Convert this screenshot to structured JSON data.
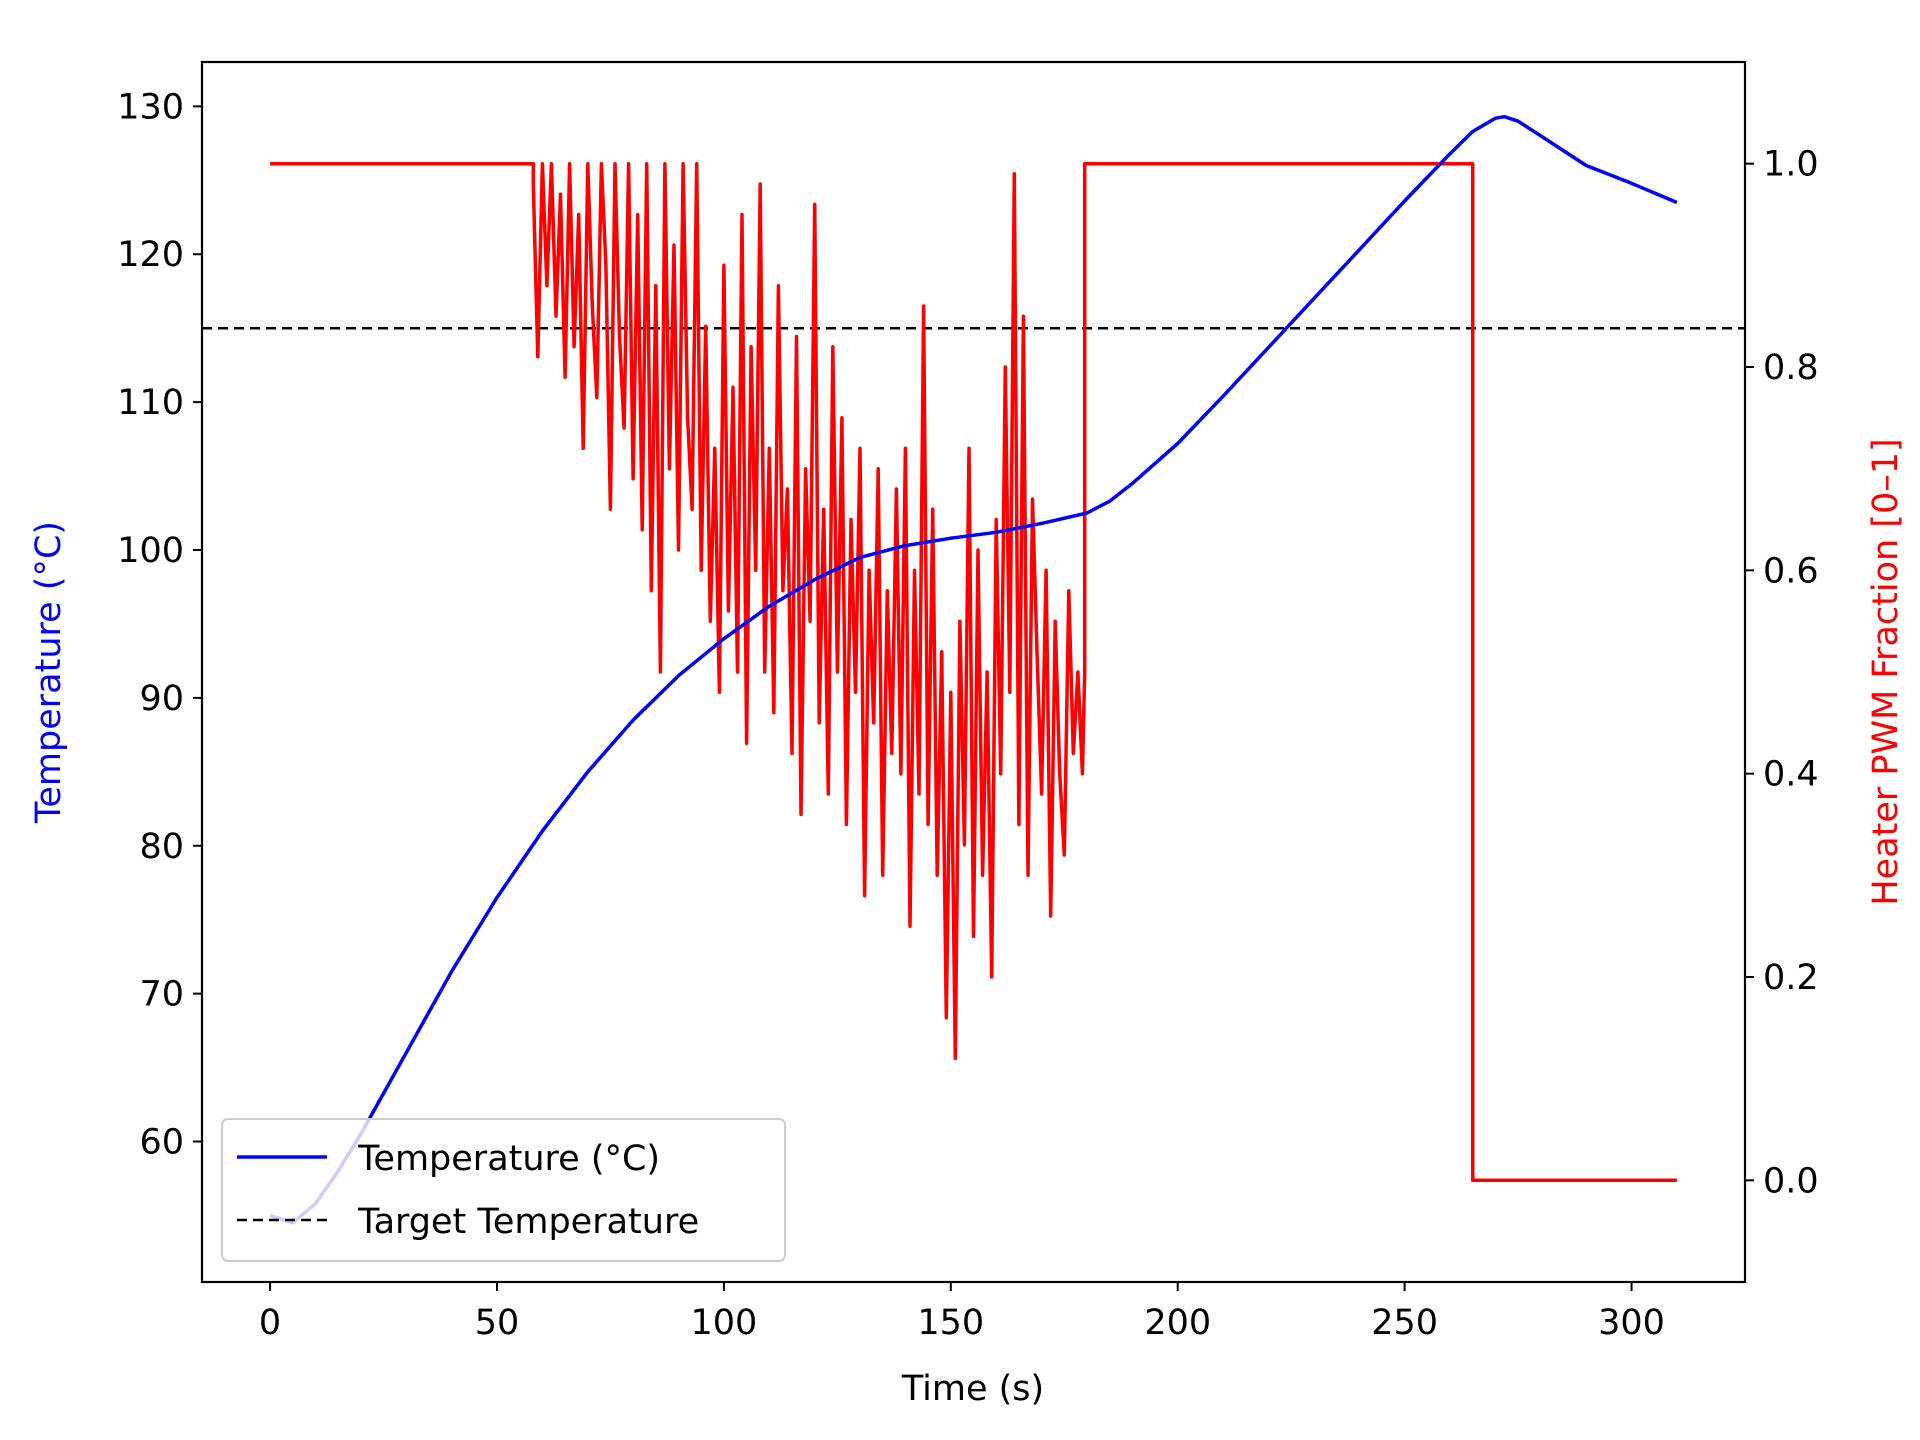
{
  "chart_data": {
    "type": "line",
    "xlabel": "Time (s)",
    "ylabel_left": "Temperature (°C)",
    "ylabel_right": "Heater PWM Fraction [0–1]",
    "xlim": [
      -15,
      325
    ],
    "ylim_left": [
      50.5,
      133
    ],
    "ylim_right": [
      -0.1,
      1.1
    ],
    "xticks": [
      0,
      50,
      100,
      150,
      200,
      250,
      300
    ],
    "yticks_left": [
      60,
      70,
      80,
      90,
      100,
      110,
      120,
      130
    ],
    "yticks_right": [
      "0.0",
      "0.2",
      "0.4",
      "0.6",
      "0.8",
      "1.0"
    ],
    "grid": false,
    "legend_position": "lower-left",
    "target_temperature": 115,
    "series": [
      {
        "name": "Temperature (°C)",
        "axis": "left",
        "color": "#0000ff",
        "x": [
          0,
          5,
          10,
          15,
          20,
          30,
          40,
          50,
          60,
          70,
          80,
          90,
          100,
          110,
          120,
          130,
          140,
          150,
          160,
          170,
          180,
          185,
          190,
          200,
          210,
          220,
          230,
          240,
          250,
          260,
          265,
          270,
          272,
          275,
          280,
          290,
          300,
          310
        ],
        "y": [
          55.0,
          54.5,
          55.8,
          58.0,
          60.5,
          66.0,
          71.5,
          76.5,
          81.0,
          85.0,
          88.5,
          91.5,
          94.0,
          96.2,
          98.0,
          99.5,
          100.3,
          100.8,
          101.2,
          101.8,
          102.5,
          103.3,
          104.5,
          107.2,
          110.4,
          113.7,
          117.0,
          120.3,
          123.6,
          126.8,
          128.3,
          129.2,
          129.3,
          129.0,
          128.0,
          126.0,
          124.8,
          123.5
        ]
      },
      {
        "name": "Target Temperature",
        "axis": "left",
        "color": "#000000",
        "style": "dashed",
        "x": [
          -15,
          325
        ],
        "y": [
          115,
          115
        ]
      },
      {
        "name": "Heater PWM Fraction",
        "axis": "right",
        "color": "#ff0000",
        "x": [
          0,
          58,
          58,
          59,
          60,
          61,
          62,
          63,
          64,
          65,
          66,
          67,
          68,
          69,
          70,
          71,
          72,
          73,
          74,
          75,
          76,
          77,
          78,
          79,
          80,
          81,
          82,
          83,
          84,
          85,
          86,
          87,
          88,
          89,
          90,
          91,
          92,
          93,
          94,
          95,
          96,
          97,
          98,
          99,
          100,
          101,
          102,
          103,
          104,
          105,
          106,
          107,
          108,
          109,
          110,
          111,
          112,
          113,
          114,
          115,
          116,
          117,
          118,
          119,
          120,
          121,
          122,
          123,
          124,
          125,
          126,
          127,
          128,
          129,
          130,
          131,
          132,
          133,
          134,
          135,
          136,
          137,
          138,
          139,
          140,
          141,
          142,
          143,
          144,
          145,
          146,
          147,
          148,
          149,
          150,
          151,
          152,
          153,
          154,
          155,
          156,
          157,
          158,
          159,
          160,
          161,
          162,
          163,
          164,
          165,
          166,
          167,
          168,
          169,
          170,
          171,
          172,
          173,
          174,
          175,
          176,
          177,
          178,
          179,
          179.5,
          179.5,
          265,
          265,
          310
        ],
        "y": [
          1.0,
          1.0,
          0.98,
          0.81,
          1.0,
          0.88,
          1.0,
          0.85,
          0.97,
          0.79,
          1.0,
          0.82,
          0.95,
          0.72,
          1.0,
          0.86,
          0.77,
          1.0,
          0.9,
          0.66,
          1.0,
          0.83,
          0.74,
          1.0,
          0.69,
          0.95,
          0.64,
          1.0,
          0.58,
          0.88,
          0.5,
          1.0,
          0.7,
          0.92,
          0.62,
          1.0,
          0.75,
          0.66,
          1.0,
          0.6,
          0.84,
          0.55,
          0.72,
          0.48,
          0.9,
          0.56,
          0.78,
          0.5,
          0.95,
          0.43,
          0.82,
          0.6,
          0.98,
          0.5,
          0.72,
          0.46,
          0.88,
          0.58,
          0.68,
          0.42,
          0.83,
          0.36,
          0.7,
          0.55,
          0.96,
          0.45,
          0.66,
          0.38,
          0.82,
          0.5,
          0.75,
          0.35,
          0.65,
          0.48,
          0.72,
          0.28,
          0.6,
          0.45,
          0.7,
          0.3,
          0.58,
          0.42,
          0.68,
          0.4,
          0.72,
          0.25,
          0.6,
          0.38,
          0.86,
          0.35,
          0.66,
          0.3,
          0.52,
          0.16,
          0.48,
          0.12,
          0.55,
          0.33,
          0.72,
          0.24,
          0.62,
          0.3,
          0.5,
          0.2,
          0.65,
          0.4,
          0.8,
          0.48,
          0.99,
          0.35,
          0.85,
          0.3,
          0.67,
          0.52,
          0.38,
          0.6,
          0.26,
          0.55,
          0.4,
          0.32,
          0.58,
          0.42,
          0.5,
          0.4,
          0.5,
          1.0,
          1.0,
          0.0,
          0.0
        ]
      }
    ],
    "legend": [
      "Temperature (°C)",
      "Target Temperature"
    ]
  }
}
